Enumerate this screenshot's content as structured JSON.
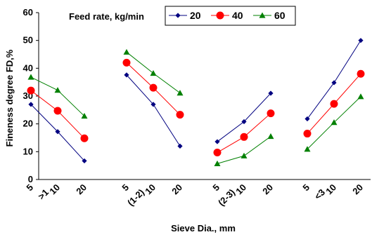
{
  "chart_data": {
    "type": "line",
    "legend_title": "Feed rate, kg/min",
    "legend_position": "top",
    "ylabel": "Fineness degree FD,%",
    "xlabel": "Sieve Dia., mm",
    "ylim": [
      0,
      60
    ],
    "yticks": [
      0,
      10,
      20,
      30,
      40,
      50,
      60
    ],
    "grid": false,
    "x_tick_labels": [
      "5",
      "10",
      "20"
    ],
    "groups": [
      {
        "label": ">1"
      },
      {
        "label": "(1-2)"
      },
      {
        "label": "(2-3)"
      },
      {
        "label": "<3"
      }
    ],
    "series": [
      {
        "name": "20",
        "color": "#000080",
        "marker": "diamond",
        "values": [
          [
            27,
            17.2,
            6.7
          ],
          [
            37.6,
            27,
            12
          ],
          [
            13.6,
            20.8,
            31
          ],
          [
            21.8,
            34.8,
            50
          ]
        ]
      },
      {
        "name": "40",
        "color": "#ff0000",
        "marker": "circle",
        "values": [
          [
            32,
            24.7,
            14.8
          ],
          [
            42,
            33,
            23.3
          ],
          [
            9.7,
            15.3,
            23.8
          ],
          [
            16.5,
            27.2,
            38
          ]
        ]
      },
      {
        "name": "60",
        "color": "#008000",
        "marker": "triangle",
        "values": [
          [
            36.8,
            32.1,
            22.8
          ],
          [
            45.8,
            38.2,
            31.1
          ],
          [
            5.7,
            8.5,
            15.5
          ],
          [
            10.9,
            20.5,
            29.8
          ]
        ]
      }
    ]
  }
}
